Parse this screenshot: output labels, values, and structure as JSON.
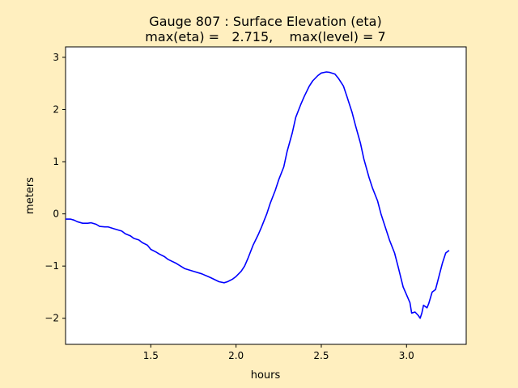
{
  "chart_data": {
    "type": "line",
    "title": "Gauge 807 : Surface Elevation (eta)",
    "subtitle": "max(eta) =   2.715,    max(level) = 7",
    "xlabel": "hours",
    "ylabel": "meters",
    "xlim": [
      1.0,
      3.35
    ],
    "ylim": [
      -2.5,
      3.2
    ],
    "xticks": [
      1.5,
      2.0,
      2.5,
      3.0
    ],
    "yticks": [
      -2,
      -1,
      0,
      1,
      2,
      3
    ],
    "xtick_labels": [
      "1.5",
      "2.0",
      "2.5",
      "3.0"
    ],
    "ytick_labels": [
      "−2",
      "−1",
      "0",
      "1",
      "2",
      "3"
    ],
    "grid": false,
    "series": [
      {
        "color": "#0000ff",
        "x": [
          1.0,
          1.03,
          1.05,
          1.07,
          1.1,
          1.13,
          1.15,
          1.18,
          1.2,
          1.23,
          1.25,
          1.28,
          1.3,
          1.33,
          1.35,
          1.38,
          1.4,
          1.43,
          1.45,
          1.48,
          1.5,
          1.53,
          1.55,
          1.58,
          1.6,
          1.65,
          1.7,
          1.75,
          1.8,
          1.85,
          1.9,
          1.93,
          1.95,
          1.98,
          2.0,
          2.03,
          2.05,
          2.07,
          2.1,
          2.13,
          2.15,
          2.18,
          2.2,
          2.23,
          2.25,
          2.28,
          2.3,
          2.33,
          2.35,
          2.38,
          2.4,
          2.43,
          2.45,
          2.48,
          2.5,
          2.53,
          2.55,
          2.58,
          2.6,
          2.63,
          2.65,
          2.68,
          2.7,
          2.73,
          2.75,
          2.78,
          2.8,
          2.83,
          2.85,
          2.88,
          2.9,
          2.93,
          2.95,
          2.98,
          3.0,
          3.02,
          3.03,
          3.05,
          3.07,
          3.08,
          3.09,
          3.1,
          3.12,
          3.13,
          3.15,
          3.17,
          3.19,
          3.21,
          3.23,
          3.25
        ],
        "y": [
          -0.1,
          -0.1,
          -0.12,
          -0.15,
          -0.18,
          -0.18,
          -0.17,
          -0.2,
          -0.24,
          -0.25,
          -0.25,
          -0.28,
          -0.3,
          -0.33,
          -0.38,
          -0.42,
          -0.47,
          -0.5,
          -0.55,
          -0.6,
          -0.68,
          -0.73,
          -0.77,
          -0.82,
          -0.87,
          -0.95,
          -1.05,
          -1.1,
          -1.15,
          -1.22,
          -1.3,
          -1.32,
          -1.3,
          -1.25,
          -1.2,
          -1.1,
          -1.0,
          -0.85,
          -0.6,
          -0.4,
          -0.25,
          0.0,
          0.2,
          0.45,
          0.65,
          0.9,
          1.2,
          1.55,
          1.85,
          2.1,
          2.25,
          2.45,
          2.55,
          2.65,
          2.7,
          2.72,
          2.71,
          2.68,
          2.6,
          2.45,
          2.25,
          1.95,
          1.7,
          1.35,
          1.05,
          0.7,
          0.5,
          0.25,
          0.0,
          -0.3,
          -0.5,
          -0.75,
          -1.0,
          -1.4,
          -1.55,
          -1.7,
          -1.9,
          -1.88,
          -1.95,
          -2.0,
          -1.9,
          -1.75,
          -1.8,
          -1.72,
          -1.5,
          -1.45,
          -1.2,
          -0.95,
          -0.75,
          -0.7
        ]
      }
    ]
  }
}
